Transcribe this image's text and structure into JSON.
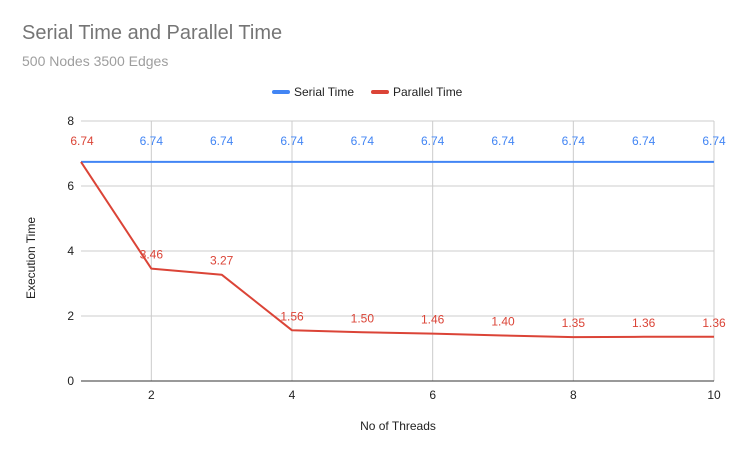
{
  "chart_data": {
    "type": "line",
    "title": "Serial Time and Parallel Time",
    "subtitle": "500 Nodes 3500 Edges",
    "xlabel": "No of Threads",
    "ylabel": "Execution Time",
    "xlim": [
      1,
      10
    ],
    "ylim": [
      0,
      8
    ],
    "x_ticks": [
      2,
      4,
      6,
      8,
      10
    ],
    "y_ticks": [
      0,
      2,
      4,
      6,
      8
    ],
    "grid": true,
    "legend_position": "top",
    "x": [
      1,
      2,
      3,
      4,
      5,
      6,
      7,
      8,
      9,
      10
    ],
    "series": [
      {
        "name": "Serial Time",
        "color": "#4285f4",
        "values": [
          6.74,
          6.74,
          6.74,
          6.74,
          6.74,
          6.74,
          6.74,
          6.74,
          6.74,
          6.74
        ],
        "labels": [
          "6.74",
          "6.74",
          "6.74",
          "6.74",
          "6.74",
          "6.74",
          "6.74",
          "6.74",
          "6.74",
          "6.74"
        ]
      },
      {
        "name": "Parallel Time",
        "color": "#db4437",
        "values": [
          6.74,
          3.46,
          3.27,
          1.56,
          1.5,
          1.46,
          1.4,
          1.35,
          1.36,
          1.36
        ],
        "labels": [
          "6.74",
          "3.46",
          "3.27",
          "1.56",
          "1.50",
          "1.46",
          "1.40",
          "1.35",
          "1.36",
          "1.36"
        ]
      }
    ]
  }
}
